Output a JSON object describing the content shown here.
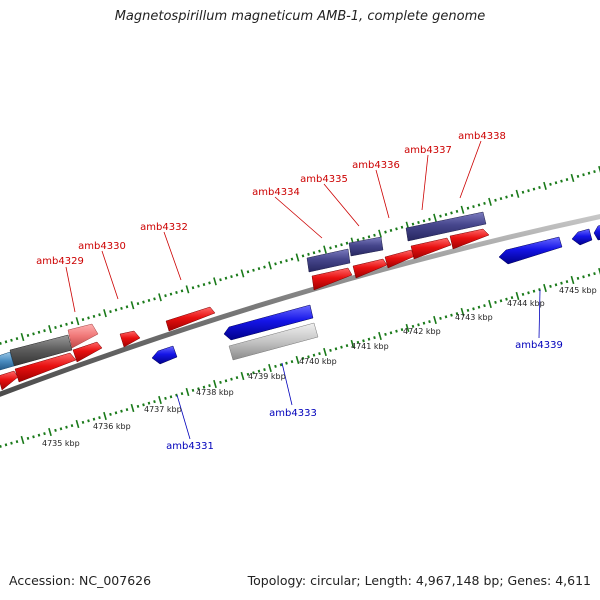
{
  "title": "Magnetospirillum magneticum AMB-1, complete genome",
  "footer": {
    "accession": "Accession: NC_007626",
    "topology": "Topology: circular; Length: 4,967,148 bp; Genes: 4,611"
  },
  "colors": {
    "forward_gene": "#e81010",
    "reverse_gene": "#1515e8",
    "backbone": "#7a7a7a",
    "tick": "#1a7a1a",
    "forward_label": "#cc0000",
    "reverse_label": "#0000bb"
  },
  "kbp_labels": [
    "4735 kbp",
    "4736 kbp",
    "4737 kbp",
    "4738 kbp",
    "4739 kbp",
    "4740 kbp",
    "4741 kbp",
    "4742 kbp",
    "4743 kbp",
    "4744 kbp",
    "4745 kbp"
  ],
  "forward_labels": [
    "amb4329",
    "amb4330",
    "amb4332",
    "amb4334",
    "amb4335",
    "amb4336",
    "amb4337",
    "amb4338"
  ],
  "reverse_labels": [
    "amb4331",
    "amb4333",
    "amb4339"
  ]
}
